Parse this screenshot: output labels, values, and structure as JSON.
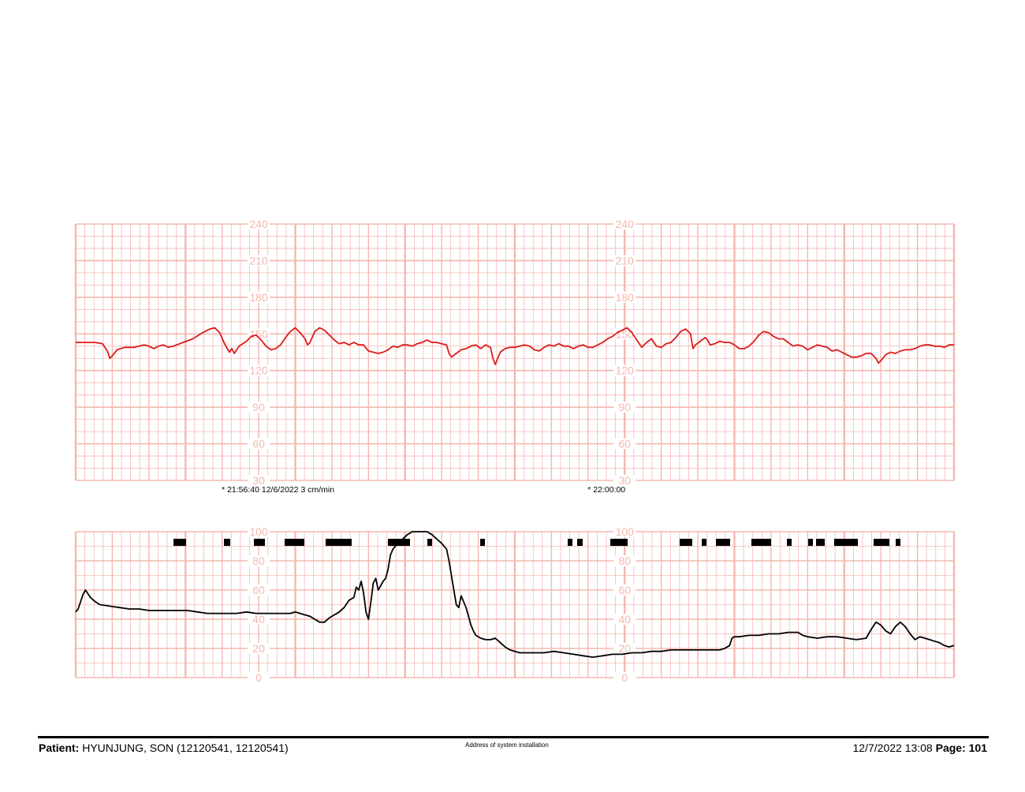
{
  "footer": {
    "patient_label": "Patient:",
    "patient_value": "HYUNJUNG, SON (12120541, 12120541)",
    "address": "Address of system installation",
    "datetime": "12/7/2022 13:08",
    "page_label": "Page:",
    "page_number": "101"
  },
  "chart_data": [
    {
      "type": "line",
      "name": "fhr",
      "x_unit": "seconds",
      "x_range": [
        0,
        360
      ],
      "ylim": [
        30,
        240
      ],
      "y_ticks": [
        30,
        60,
        90,
        120,
        150,
        180,
        210,
        240
      ],
      "grid": true,
      "line_color": "#dd1a1a",
      "grid_color": "#f4b8b0",
      "annotations": [
        {
          "x": 75,
          "text": "* 21:56:40  12/6/2022  3 cm/min"
        },
        {
          "x": 225,
          "text": "* 22:00:00"
        }
      ],
      "points": [
        [
          0,
          143
        ],
        [
          4,
          143
        ],
        [
          8,
          143
        ],
        [
          11,
          142
        ],
        [
          13,
          136
        ],
        [
          14,
          130
        ],
        [
          15,
          132
        ],
        [
          17,
          137
        ],
        [
          20,
          139
        ],
        [
          24,
          139
        ],
        [
          28,
          141
        ],
        [
          30,
          140
        ],
        [
          32,
          138
        ],
        [
          34,
          140
        ],
        [
          36,
          141
        ],
        [
          38,
          139
        ],
        [
          40,
          140
        ],
        [
          44,
          143
        ],
        [
          48,
          146
        ],
        [
          52,
          151
        ],
        [
          55,
          154
        ],
        [
          57,
          155
        ],
        [
          59,
          151
        ],
        [
          61,
          142
        ],
        [
          63,
          135
        ],
        [
          64,
          138
        ],
        [
          65,
          134
        ],
        [
          67,
          140
        ],
        [
          70,
          144
        ],
        [
          72,
          148
        ],
        [
          74,
          149
        ],
        [
          76,
          145
        ],
        [
          78,
          140
        ],
        [
          80,
          137
        ],
        [
          82,
          138
        ],
        [
          84,
          141
        ],
        [
          86,
          147
        ],
        [
          88,
          152
        ],
        [
          90,
          155
        ],
        [
          92,
          151
        ],
        [
          94,
          146
        ],
        [
          95,
          141
        ],
        [
          96,
          143
        ],
        [
          98,
          152
        ],
        [
          100,
          155
        ],
        [
          102,
          153
        ],
        [
          104,
          149
        ],
        [
          106,
          145
        ],
        [
          108,
          142
        ],
        [
          110,
          143
        ],
        [
          112,
          141
        ],
        [
          114,
          143
        ],
        [
          116,
          141
        ],
        [
          118,
          141
        ],
        [
          120,
          136
        ],
        [
          122,
          135
        ],
        [
          124,
          134
        ],
        [
          126,
          135
        ],
        [
          128,
          137
        ],
        [
          130,
          140
        ],
        [
          132,
          139
        ],
        [
          134,
          141
        ],
        [
          136,
          141
        ],
        [
          138,
          140
        ],
        [
          140,
          142
        ],
        [
          142,
          143
        ],
        [
          144,
          145
        ],
        [
          146,
          143
        ],
        [
          148,
          143
        ],
        [
          150,
          142
        ],
        [
          152,
          141
        ],
        [
          153,
          134
        ],
        [
          154,
          131
        ],
        [
          156,
          134
        ],
        [
          158,
          137
        ],
        [
          160,
          138
        ],
        [
          162,
          140
        ],
        [
          164,
          141
        ],
        [
          166,
          138
        ],
        [
          168,
          141
        ],
        [
          170,
          139
        ],
        [
          171,
          130
        ],
        [
          172,
          125
        ],
        [
          173,
          130
        ],
        [
          174,
          135
        ],
        [
          176,
          138
        ],
        [
          178,
          139
        ],
        [
          180,
          139
        ],
        [
          182,
          140
        ],
        [
          184,
          141
        ],
        [
          186,
          140
        ],
        [
          188,
          137
        ],
        [
          190,
          136
        ],
        [
          192,
          139
        ],
        [
          194,
          141
        ],
        [
          196,
          140
        ],
        [
          198,
          142
        ],
        [
          200,
          140
        ],
        [
          202,
          140
        ],
        [
          204,
          138
        ],
        [
          206,
          140
        ],
        [
          208,
          141
        ],
        [
          210,
          139
        ],
        [
          212,
          139
        ],
        [
          214,
          141
        ],
        [
          216,
          143
        ],
        [
          218,
          146
        ],
        [
          220,
          148
        ],
        [
          222,
          151
        ],
        [
          224,
          153
        ],
        [
          226,
          155
        ],
        [
          228,
          151
        ],
        [
          230,
          145
        ],
        [
          232,
          139
        ],
        [
          234,
          143
        ],
        [
          236,
          146
        ],
        [
          238,
          140
        ],
        [
          240,
          139
        ],
        [
          242,
          142
        ],
        [
          244,
          143
        ],
        [
          246,
          147
        ],
        [
          248,
          152
        ],
        [
          250,
          154
        ],
        [
          252,
          150
        ],
        [
          253,
          138
        ],
        [
          254,
          141
        ],
        [
          256,
          144
        ],
        [
          258,
          147
        ],
        [
          259,
          145
        ],
        [
          260,
          141
        ],
        [
          262,
          142
        ],
        [
          264,
          144
        ],
        [
          266,
          143
        ],
        [
          268,
          143
        ],
        [
          270,
          141
        ],
        [
          272,
          138
        ],
        [
          274,
          138
        ],
        [
          276,
          140
        ],
        [
          278,
          144
        ],
        [
          280,
          149
        ],
        [
          282,
          152
        ],
        [
          284,
          151
        ],
        [
          286,
          148
        ],
        [
          288,
          146
        ],
        [
          290,
          146
        ],
        [
          292,
          143
        ],
        [
          294,
          140
        ],
        [
          296,
          141
        ],
        [
          298,
          140
        ],
        [
          300,
          137
        ],
        [
          302,
          139
        ],
        [
          304,
          141
        ],
        [
          306,
          140
        ],
        [
          308,
          139
        ],
        [
          310,
          136
        ],
        [
          312,
          137
        ],
        [
          314,
          135
        ],
        [
          316,
          133
        ],
        [
          318,
          131
        ],
        [
          320,
          131
        ],
        [
          322,
          132
        ],
        [
          324,
          134
        ],
        [
          326,
          134
        ],
        [
          328,
          130
        ],
        [
          329,
          126
        ],
        [
          330,
          128
        ],
        [
          332,
          133
        ],
        [
          334,
          135
        ],
        [
          336,
          134
        ],
        [
          338,
          136
        ],
        [
          340,
          137
        ],
        [
          342,
          137
        ],
        [
          344,
          138
        ],
        [
          346,
          140
        ],
        [
          348,
          141
        ],
        [
          350,
          141
        ],
        [
          352,
          140
        ],
        [
          354,
          140
        ],
        [
          356,
          139
        ],
        [
          358,
          141
        ],
        [
          360,
          141
        ]
      ]
    },
    {
      "type": "line",
      "name": "uterine-activity",
      "x_unit": "seconds",
      "x_range": [
        0,
        360
      ],
      "ylim": [
        0,
        100
      ],
      "y_ticks": [
        0,
        20,
        40,
        60,
        80,
        100
      ],
      "grid": true,
      "line_color": "#000000",
      "grid_color": "#f4b8b0",
      "points": [
        [
          0,
          45
        ],
        [
          1,
          47
        ],
        [
          2,
          52
        ],
        [
          3,
          57
        ],
        [
          4,
          60
        ],
        [
          6,
          55
        ],
        [
          8,
          52
        ],
        [
          10,
          50
        ],
        [
          14,
          49
        ],
        [
          18,
          48
        ],
        [
          22,
          47
        ],
        [
          26,
          47
        ],
        [
          30,
          46
        ],
        [
          34,
          46
        ],
        [
          40,
          46
        ],
        [
          46,
          46
        ],
        [
          50,
          45
        ],
        [
          54,
          44
        ],
        [
          60,
          44
        ],
        [
          66,
          44
        ],
        [
          70,
          45
        ],
        [
          74,
          44
        ],
        [
          78,
          44
        ],
        [
          80,
          44
        ],
        [
          84,
          44
        ],
        [
          88,
          44
        ],
        [
          90,
          45
        ],
        [
          92,
          44
        ],
        [
          94,
          43
        ],
        [
          96,
          42
        ],
        [
          98,
          40
        ],
        [
          100,
          38
        ],
        [
          102,
          38
        ],
        [
          104,
          41
        ],
        [
          106,
          43
        ],
        [
          108,
          45
        ],
        [
          110,
          48
        ],
        [
          112,
          53
        ],
        [
          114,
          55
        ],
        [
          115,
          62
        ],
        [
          116,
          60
        ],
        [
          117,
          66
        ],
        [
          118,
          58
        ],
        [
          119,
          45
        ],
        [
          120,
          40
        ],
        [
          121,
          52
        ],
        [
          122,
          65
        ],
        [
          123,
          68
        ],
        [
          124,
          60
        ],
        [
          125,
          63
        ],
        [
          126,
          66
        ],
        [
          127,
          68
        ],
        [
          128,
          74
        ],
        [
          129,
          84
        ],
        [
          130,
          88
        ],
        [
          132,
          92
        ],
        [
          134,
          95
        ],
        [
          136,
          98
        ],
        [
          138,
          100
        ],
        [
          140,
          100
        ],
        [
          142,
          100
        ],
        [
          144,
          100
        ],
        [
          146,
          98
        ],
        [
          148,
          95
        ],
        [
          150,
          92
        ],
        [
          152,
          88
        ],
        [
          153,
          80
        ],
        [
          154,
          70
        ],
        [
          155,
          60
        ],
        [
          156,
          50
        ],
        [
          157,
          48
        ],
        [
          158,
          56
        ],
        [
          159,
          52
        ],
        [
          160,
          48
        ],
        [
          161,
          42
        ],
        [
          162,
          36
        ],
        [
          163,
          32
        ],
        [
          164,
          29
        ],
        [
          166,
          27
        ],
        [
          168,
          26
        ],
        [
          170,
          26
        ],
        [
          172,
          27
        ],
        [
          174,
          24
        ],
        [
          176,
          21
        ],
        [
          178,
          19
        ],
        [
          180,
          18
        ],
        [
          182,
          17
        ],
        [
          184,
          17
        ],
        [
          188,
          17
        ],
        [
          192,
          17
        ],
        [
          196,
          18
        ],
        [
          200,
          17
        ],
        [
          204,
          16
        ],
        [
          208,
          15
        ],
        [
          212,
          14
        ],
        [
          216,
          15
        ],
        [
          220,
          16
        ],
        [
          224,
          16
        ],
        [
          228,
          17
        ],
        [
          232,
          17
        ],
        [
          236,
          18
        ],
        [
          240,
          18
        ],
        [
          244,
          19
        ],
        [
          248,
          19
        ],
        [
          252,
          19
        ],
        [
          256,
          19
        ],
        [
          260,
          19
        ],
        [
          264,
          19
        ],
        [
          266,
          20
        ],
        [
          268,
          22
        ],
        [
          269,
          27
        ],
        [
          270,
          28
        ],
        [
          272,
          28
        ],
        [
          276,
          29
        ],
        [
          280,
          29
        ],
        [
          284,
          30
        ],
        [
          288,
          30
        ],
        [
          292,
          31
        ],
        [
          296,
          31
        ],
        [
          298,
          29
        ],
        [
          300,
          28
        ],
        [
          304,
          27
        ],
        [
          308,
          28
        ],
        [
          312,
          28
        ],
        [
          316,
          27
        ],
        [
          320,
          26
        ],
        [
          324,
          27
        ],
        [
          326,
          33
        ],
        [
          328,
          38
        ],
        [
          330,
          36
        ],
        [
          332,
          32
        ],
        [
          334,
          30
        ],
        [
          336,
          35
        ],
        [
          338,
          38
        ],
        [
          340,
          35
        ],
        [
          342,
          30
        ],
        [
          344,
          26
        ],
        [
          346,
          28
        ],
        [
          348,
          27
        ],
        [
          350,
          26
        ],
        [
          352,
          25
        ],
        [
          354,
          24
        ],
        [
          356,
          22
        ],
        [
          358,
          21
        ],
        [
          360,
          22
        ]
      ]
    }
  ]
}
